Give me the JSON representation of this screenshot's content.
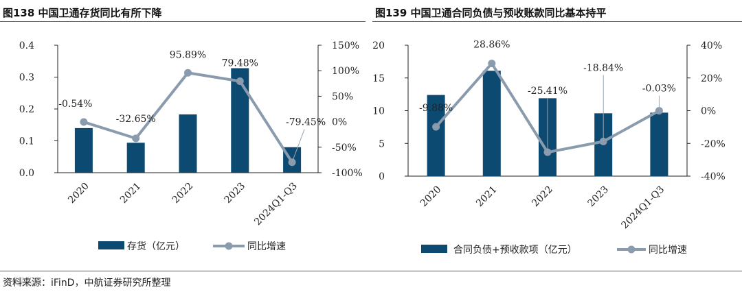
{
  "header": {
    "left_title": "图138  中国卫通存货同比有所下降",
    "right_title": "图139  中国卫通合同负债与预收账款同比基本持平"
  },
  "source": "资料来源：iFinD，中航证券研究所整理",
  "watermark": "小嘴股",
  "colors": {
    "bar": "#0c4a72",
    "line": "#8a9bad",
    "rule": "#3d5a80"
  },
  "chart_data": [
    {
      "type": "bar+line",
      "title": "图138  中国卫通存货同比有所下降",
      "categories": [
        "2020",
        "2021",
        "2022",
        "2023",
        "2024Q1-Q3"
      ],
      "series": [
        {
          "name": "存货（亿元）",
          "type": "bar",
          "axis": "left",
          "values": [
            0.14,
            0.094,
            0.183,
            0.328,
            0.08
          ]
        },
        {
          "name": "同比增速",
          "type": "line",
          "axis": "right",
          "values": [
            -0.54,
            -32.65,
            95.89,
            79.48,
            -79.45
          ],
          "labels": [
            "-0.54%",
            "-32.65%",
            "95.89%",
            "79.48%",
            "-79.45%"
          ]
        }
      ],
      "left_axis": {
        "min": 0,
        "max": 0.4,
        "ticks": [
          "0.0",
          "0.1",
          "0.2",
          "0.3",
          "0.4"
        ],
        "tick_values": [
          0,
          0.1,
          0.2,
          0.3,
          0.4
        ]
      },
      "right_axis": {
        "min": -100,
        "max": 150,
        "ticks": [
          "-100%",
          "-50%",
          "0%",
          "50%",
          "100%",
          "150%"
        ],
        "tick_values": [
          -100,
          -50,
          0,
          50,
          100,
          150
        ]
      },
      "legend": [
        "存货（亿元）",
        "同比增速"
      ]
    },
    {
      "type": "bar+line",
      "title": "图139  中国卫通合同负债与预收账款同比基本持平",
      "categories": [
        "2020",
        "2021",
        "2022",
        "2023",
        "2024Q1-Q3"
      ],
      "series": [
        {
          "name": "合同负债+预收款项（亿元）",
          "type": "bar",
          "axis": "left",
          "values": [
            12.4,
            16.1,
            11.9,
            9.6,
            9.7
          ]
        },
        {
          "name": "同比增速",
          "type": "line",
          "axis": "right",
          "values": [
            -9.88,
            28.86,
            -25.41,
            -18.84,
            -0.03
          ],
          "labels": [
            "-9.88%",
            "28.86%",
            "-25.41%",
            "-18.84%",
            "-0.03%"
          ]
        }
      ],
      "left_axis": {
        "min": 0,
        "max": 20,
        "ticks": [
          "0",
          "5",
          "10",
          "15",
          "20"
        ],
        "tick_values": [
          0,
          5,
          10,
          15,
          20
        ]
      },
      "right_axis": {
        "min": -40,
        "max": 40,
        "ticks": [
          "-40%",
          "-20%",
          "0%",
          "20%",
          "40%"
        ],
        "tick_values": [
          -40,
          -20,
          0,
          20,
          40
        ]
      },
      "legend": [
        "合同负债+预收款项（亿元）",
        "同比增速"
      ]
    }
  ]
}
